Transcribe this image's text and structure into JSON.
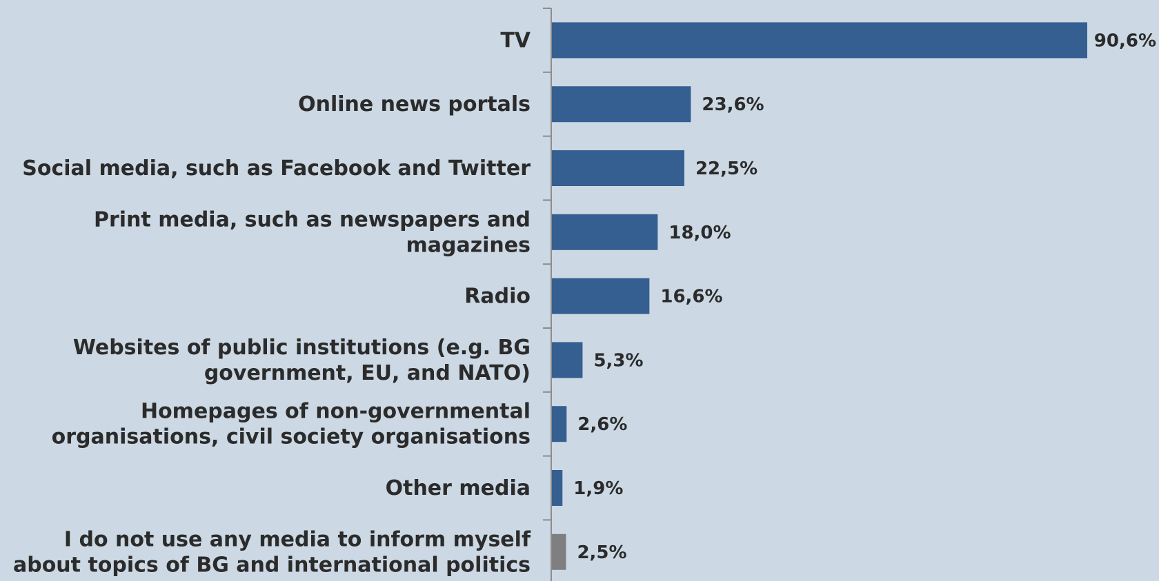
{
  "chart_data": {
    "type": "bar",
    "orientation": "horizontal",
    "categories": [
      [
        "TV"
      ],
      [
        "Online news portals"
      ],
      [
        "Social media, such as Facebook and Twitter"
      ],
      [
        "Print media, such as newspapers and",
        "magazines"
      ],
      [
        "Radio"
      ],
      [
        "Websites of public institutions (e.g. BG",
        "government, EU, and NATO)"
      ],
      [
        "Homepages of non-governmental",
        "organisations, civil society organisations"
      ],
      [
        "Other media"
      ],
      [
        "I do not use any media to inform myself",
        "about topics of BG and international politics"
      ]
    ],
    "values": [
      90.6,
      23.6,
      22.5,
      18.0,
      16.6,
      5.3,
      2.6,
      1.9,
      2.5
    ],
    "value_labels": [
      "90,6%",
      "23,6%",
      "22,5%",
      "18,0%",
      "16,6%",
      "5,3%",
      "2,6%",
      "1,9%",
      "2,5%"
    ],
    "bar_colors": [
      "#355e91",
      "#355e91",
      "#355e91",
      "#355e91",
      "#355e91",
      "#355e91",
      "#355e91",
      "#355e91",
      "#7f7f7f"
    ],
    "xlim": [
      0,
      100
    ],
    "grid": false,
    "title": "",
    "xlabel": "",
    "ylabel": ""
  }
}
